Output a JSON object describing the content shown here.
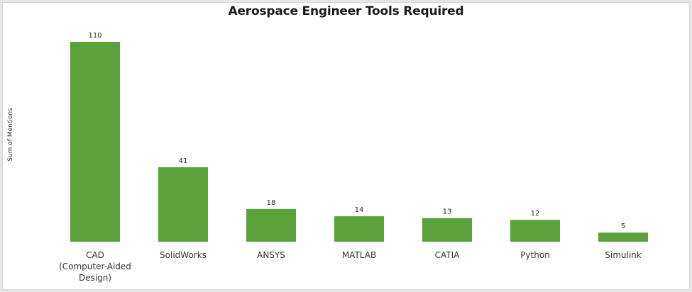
{
  "chart_data": {
    "type": "bar",
    "title": "Aerospace Engineer Tools Required",
    "xlabel": "",
    "ylabel": "Sum of Mentions",
    "categories": [
      "CAD (Computer-Aided Design)",
      "SolidWorks",
      "ANSYS",
      "MATLAB",
      "CATIA",
      "Python",
      "Simulink"
    ],
    "values": [
      110,
      41,
      18,
      14,
      13,
      12,
      5
    ],
    "ylim": [
      0,
      110
    ],
    "grid": false,
    "show_data_labels": true,
    "bar_color": "#5ba23a"
  }
}
